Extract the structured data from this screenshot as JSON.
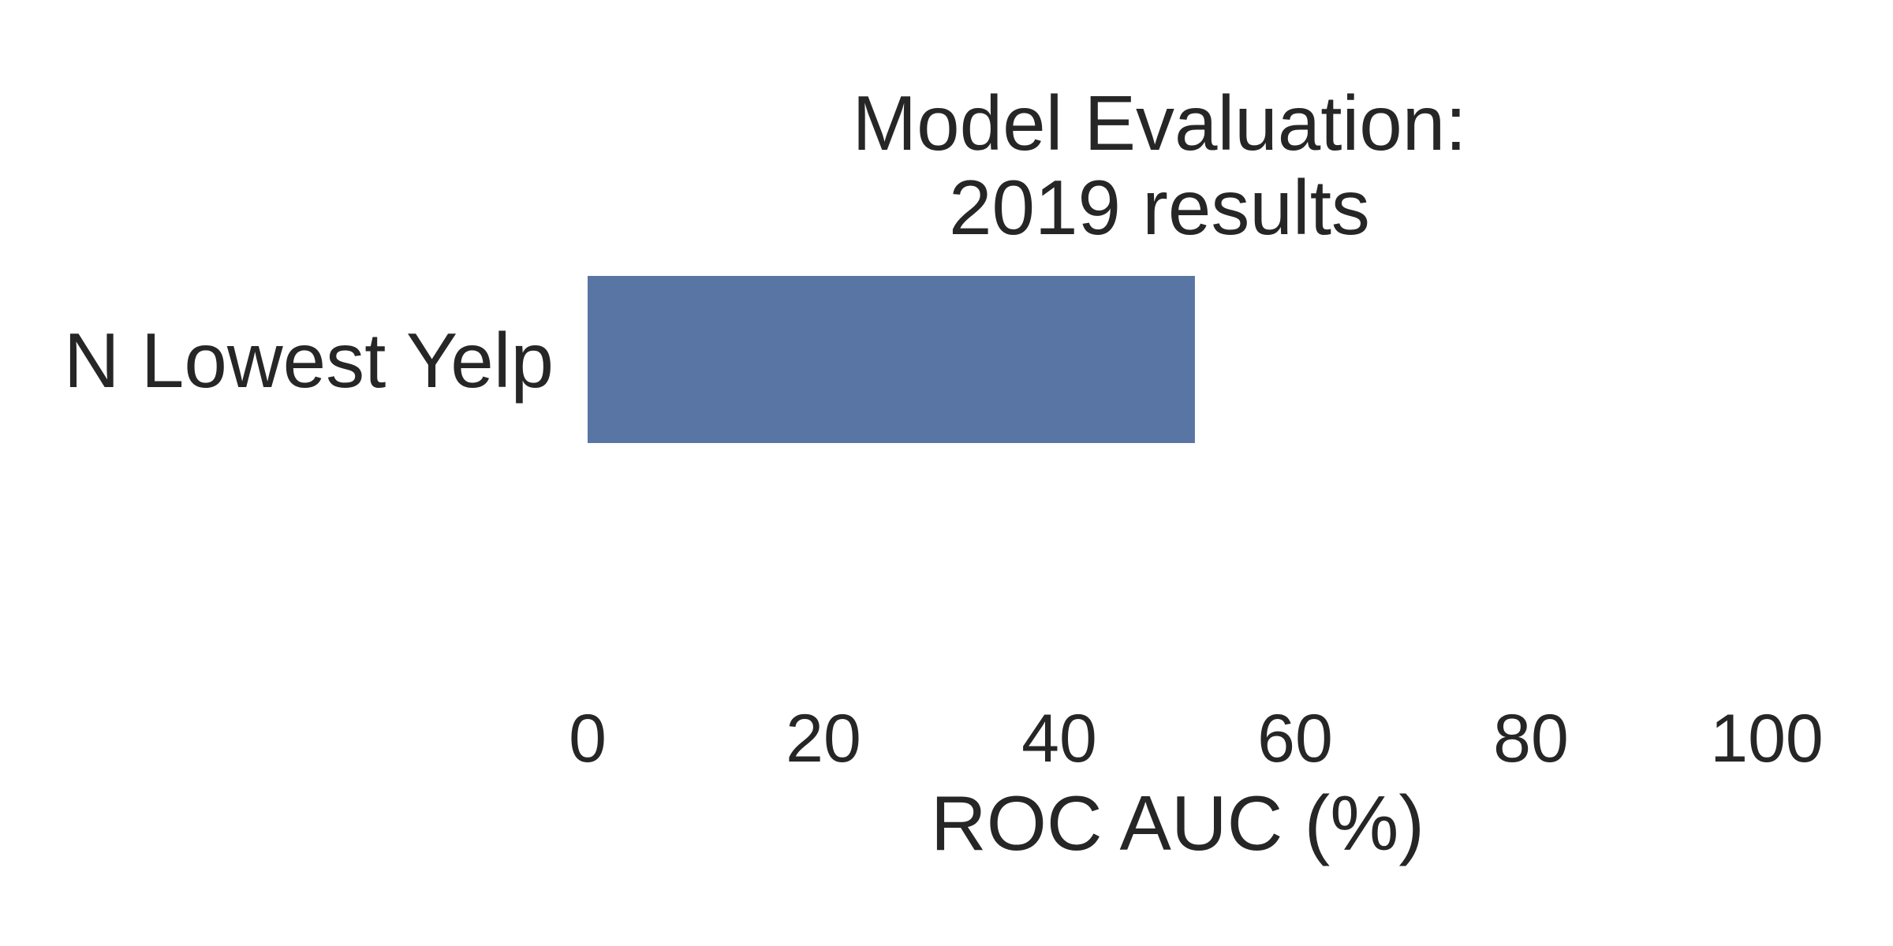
{
  "chart_data": {
    "type": "bar",
    "orientation": "horizontal",
    "title": [
      "Model Evaluation:",
      "2019 results"
    ],
    "categories": [
      "N Lowest Yelp"
    ],
    "values": [
      51.5
    ],
    "xlabel": "ROC AUC (%)",
    "ylabel": "",
    "xlim": [
      0,
      100
    ],
    "xticks": [
      0,
      20,
      40,
      60,
      80,
      100
    ],
    "grid": false,
    "bar_color": "#5975a4"
  }
}
